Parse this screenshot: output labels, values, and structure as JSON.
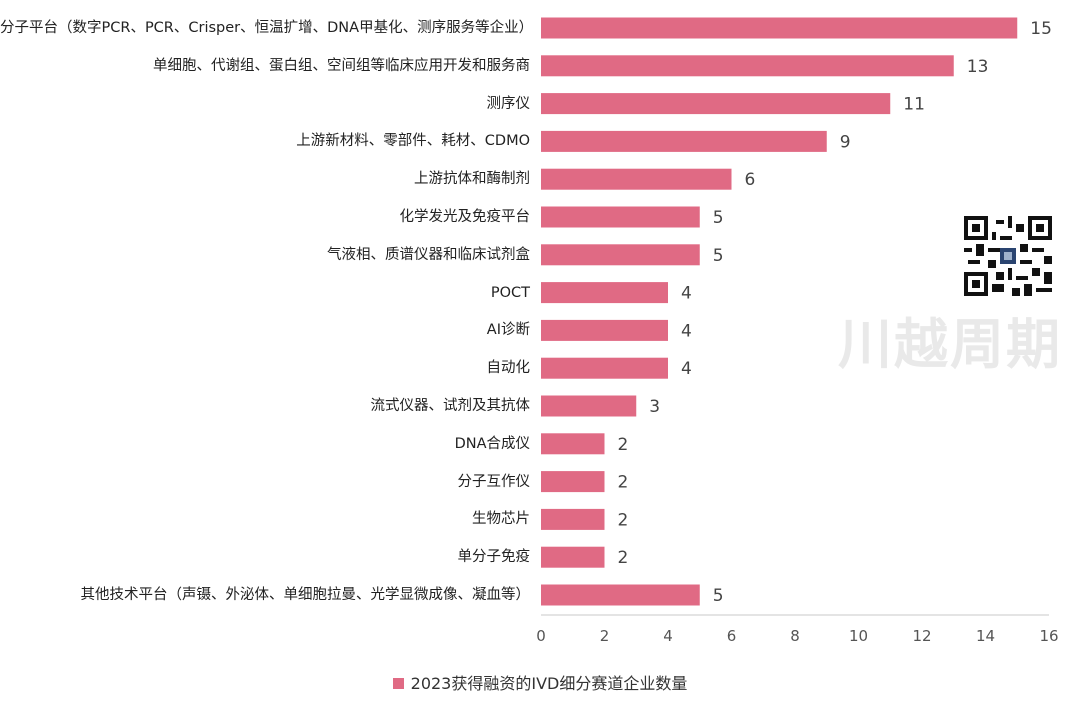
{
  "chart_data": {
    "type": "bar",
    "orientation": "horizontal",
    "categories": [
      "分子平台（数字PCR、PCR、Crisper、恒温扩增、DNA甲基化、测序服务等企业）",
      "单细胞、代谢组、蛋白组、空间组等临床应用开发和服务商",
      "测序仪",
      "上游新材料、零部件、耗材、CDMO",
      "上游抗体和酶制剂",
      "化学发光及免疫平台",
      "气液相、质谱仪器和临床试剂盒",
      "POCT",
      "AI诊断",
      "自动化",
      "流式仪器、试剂及其抗体",
      "DNA合成仪",
      "分子互作仪",
      "生物芯片",
      "单分子免疫",
      "其他技术平台（声镊、外泌体、单细胞拉曼、光学显微成像、凝血等）"
    ],
    "series": [
      {
        "name": "2023获得融资的IVD细分赛道企业数量",
        "values": [
          15,
          13,
          11,
          9,
          6,
          5,
          5,
          4,
          4,
          4,
          3,
          2,
          2,
          2,
          2,
          5
        ],
        "color": "#e06a84"
      }
    ],
    "xlim": [
      0,
      16
    ],
    "xticks": [
      0,
      2,
      4,
      6,
      8,
      10,
      12,
      14,
      16
    ],
    "grid": false,
    "legend_position": "bottom",
    "data_labels": true
  },
  "watermark": "川越周期",
  "qr_icon": "qr-code-icon"
}
